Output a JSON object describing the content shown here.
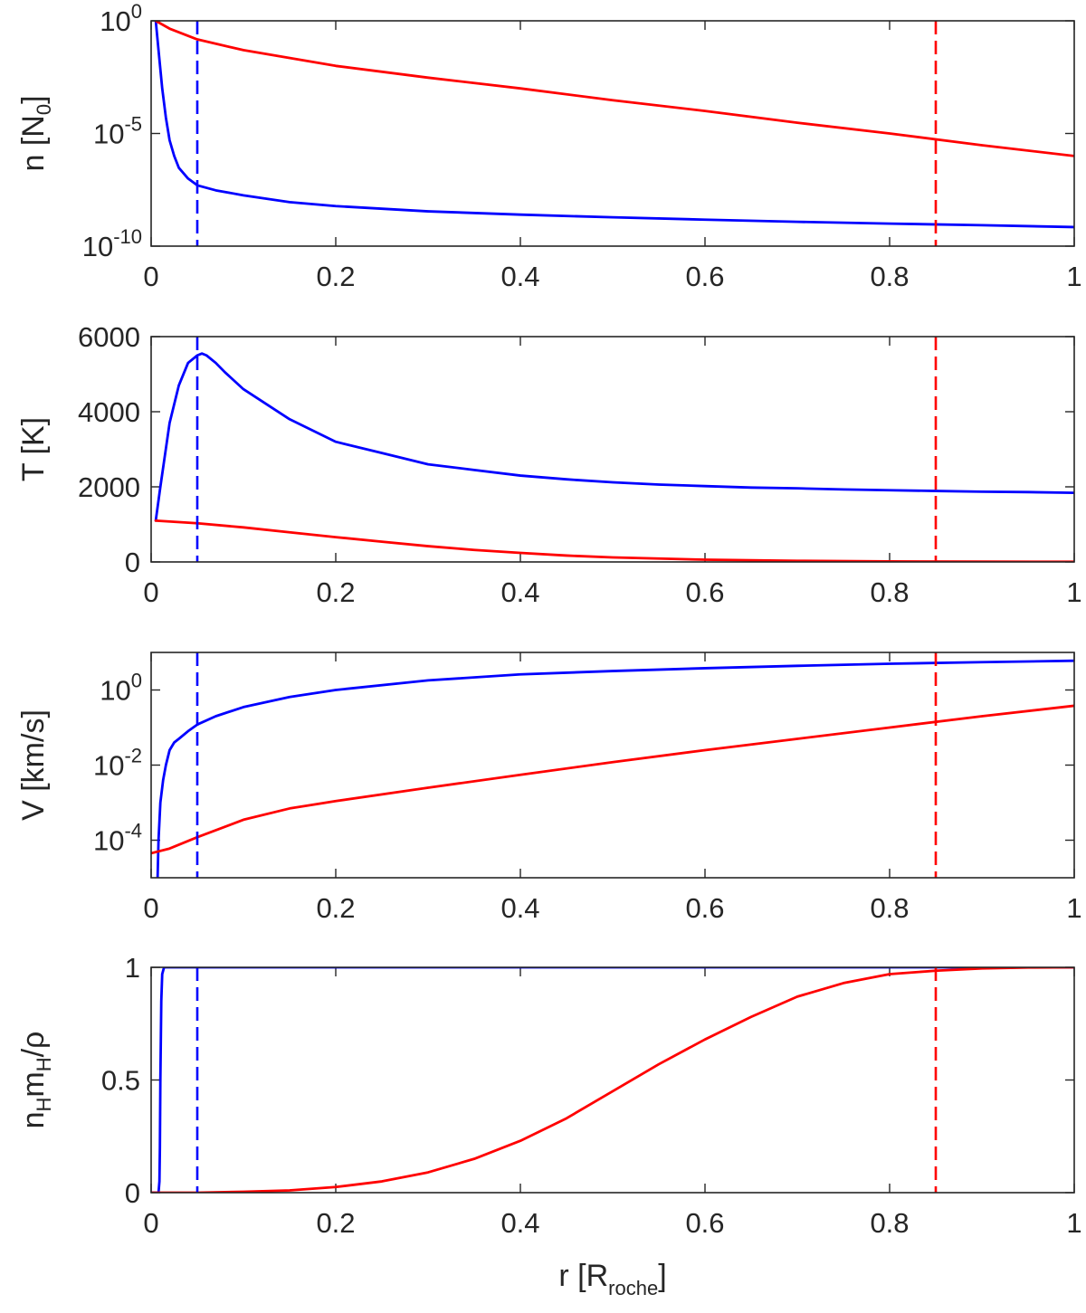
{
  "figure": {
    "xlabel": {
      "main": "r [R",
      "sub": "roche",
      "close": "]"
    }
  },
  "colors": {
    "blue": "#0000ff",
    "red": "#ff0000",
    "axis": "#262626"
  },
  "chart_data": [
    {
      "type": "line",
      "id": "density",
      "ylabel": {
        "parts": [
          {
            "t": "n [N"
          },
          {
            "t": "0",
            "s": "sub"
          },
          {
            "t": "]"
          }
        ]
      },
      "yscale": "log",
      "xlim": [
        0,
        1
      ],
      "ylim": [
        1e-10,
        1
      ],
      "xticks": [
        0,
        0.2,
        0.4,
        0.6,
        0.8,
        1
      ],
      "xtick_labels": [
        "0",
        "0.2",
        "0.4",
        "0.6",
        "0.8",
        "1"
      ],
      "yticks": [
        1e-10,
        1e-05,
        1
      ],
      "ytick_labels": [
        {
          "base": "10",
          "exp": "-10"
        },
        {
          "base": "10",
          "exp": "-5"
        },
        {
          "base": "10",
          "exp": "0"
        }
      ],
      "vlines": [
        {
          "x": 0.05,
          "color": "blue"
        },
        {
          "x": 0.85,
          "color": "red"
        }
      ],
      "series": [
        {
          "name": "blue",
          "color": "blue",
          "x": [
            0.005,
            0.008,
            0.012,
            0.016,
            0.02,
            0.025,
            0.03,
            0.04,
            0.05,
            0.07,
            0.1,
            0.15,
            0.2,
            0.3,
            0.4,
            0.5,
            0.6,
            0.7,
            0.8,
            0.9,
            1.0
          ],
          "y": [
            1,
            0.05,
            0.001,
            5e-05,
            5e-06,
            1e-06,
            3e-07,
            1e-07,
            5e-08,
            3e-08,
            1.8e-08,
            9e-09,
            6e-09,
            3.5e-09,
            2.5e-09,
            1.9e-09,
            1.5e-09,
            1.2e-09,
            1e-09,
            8.5e-10,
            7e-10
          ]
        },
        {
          "name": "red",
          "color": "red",
          "x": [
            0.005,
            0.02,
            0.05,
            0.1,
            0.2,
            0.3,
            0.4,
            0.5,
            0.6,
            0.7,
            0.8,
            0.9,
            1.0
          ],
          "y": [
            1,
            0.45,
            0.15,
            0.05,
            0.01,
            0.003,
            0.001,
            0.0003,
            0.0001,
            3e-05,
            1e-05,
            3e-06,
            1e-06
          ]
        }
      ]
    },
    {
      "type": "line",
      "id": "temperature",
      "ylabel": {
        "parts": [
          {
            "t": "T [K]"
          }
        ]
      },
      "yscale": "linear",
      "xlim": [
        0,
        1
      ],
      "ylim": [
        0,
        6000
      ],
      "xticks": [
        0,
        0.2,
        0.4,
        0.6,
        0.8,
        1
      ],
      "xtick_labels": [
        "0",
        "0.2",
        "0.4",
        "0.6",
        "0.8",
        "1"
      ],
      "yticks": [
        0,
        2000,
        4000,
        6000
      ],
      "ytick_labels": [
        "0",
        "2000",
        "4000",
        "6000"
      ],
      "vlines": [
        {
          "x": 0.05,
          "color": "blue"
        },
        {
          "x": 0.85,
          "color": "red"
        }
      ],
      "series": [
        {
          "name": "blue",
          "color": "blue",
          "x": [
            0.005,
            0.01,
            0.02,
            0.03,
            0.04,
            0.05,
            0.055,
            0.06,
            0.07,
            0.08,
            0.1,
            0.15,
            0.2,
            0.25,
            0.3,
            0.35,
            0.4,
            0.45,
            0.5,
            0.55,
            0.6,
            0.65,
            0.7,
            0.75,
            0.8,
            0.85,
            0.9,
            0.95,
            1.0
          ],
          "y": [
            1100,
            2000,
            3700,
            4700,
            5300,
            5500,
            5550,
            5500,
            5300,
            5050,
            4600,
            3800,
            3200,
            2900,
            2600,
            2450,
            2300,
            2200,
            2120,
            2060,
            2020,
            1980,
            1960,
            1930,
            1910,
            1890,
            1870,
            1860,
            1840
          ]
        },
        {
          "name": "red",
          "color": "red",
          "x": [
            0.005,
            0.05,
            0.1,
            0.15,
            0.2,
            0.25,
            0.3,
            0.35,
            0.4,
            0.45,
            0.5,
            0.6,
            0.7,
            0.8,
            0.9,
            1.0
          ],
          "y": [
            1100,
            1030,
            920,
            790,
            660,
            540,
            420,
            320,
            240,
            170,
            120,
            60,
            30,
            15,
            8,
            5
          ]
        }
      ]
    },
    {
      "type": "line",
      "id": "velocity",
      "ylabel": {
        "parts": [
          {
            "t": "V [km/s]"
          }
        ]
      },
      "yscale": "log",
      "xlim": [
        0,
        1
      ],
      "ylim": [
        1e-05,
        10
      ],
      "xticks": [
        0,
        0.2,
        0.4,
        0.6,
        0.8,
        1
      ],
      "xtick_labels": [
        "0",
        "0.2",
        "0.4",
        "0.6",
        "0.8",
        "1"
      ],
      "yticks": [
        0.0001,
        0.01,
        1
      ],
      "ytick_labels": [
        {
          "base": "10",
          "exp": "-4"
        },
        {
          "base": "10",
          "exp": "-2"
        },
        {
          "base": "10",
          "exp": "0"
        }
      ],
      "vlines": [
        {
          "x": 0.05,
          "color": "blue"
        },
        {
          "x": 0.85,
          "color": "red"
        }
      ],
      "series": [
        {
          "name": "blue",
          "color": "blue",
          "x": [
            0.007,
            0.008,
            0.01,
            0.013,
            0.016,
            0.02,
            0.025,
            0.03,
            0.04,
            0.05,
            0.07,
            0.1,
            0.15,
            0.2,
            0.3,
            0.4,
            0.5,
            0.6,
            0.7,
            0.8,
            0.9,
            1.0
          ],
          "y": [
            1e-05,
            0.0001,
            0.001,
            0.004,
            0.01,
            0.025,
            0.04,
            0.05,
            0.08,
            0.12,
            0.2,
            0.35,
            0.65,
            1.0,
            1.8,
            2.6,
            3.2,
            3.8,
            4.4,
            5.0,
            5.5,
            6.0
          ]
        },
        {
          "name": "red",
          "color": "red",
          "x": [
            0.0,
            0.02,
            0.05,
            0.1,
            0.15,
            0.2,
            0.3,
            0.4,
            0.5,
            0.6,
            0.7,
            0.8,
            0.9,
            1.0
          ],
          "y": [
            4.5e-05,
            6e-05,
            0.00012,
            0.00035,
            0.0007,
            0.0011,
            0.0025,
            0.0055,
            0.012,
            0.025,
            0.05,
            0.1,
            0.2,
            0.38
          ]
        }
      ]
    },
    {
      "type": "line",
      "id": "hydrogen_fraction",
      "ylabel": {
        "parts": [
          {
            "t": "n"
          },
          {
            "t": "H",
            "s": "sub"
          },
          {
            "t": "m"
          },
          {
            "t": "H",
            "s": "sub"
          },
          {
            "t": "/ρ"
          }
        ]
      },
      "yscale": "linear",
      "xlim": [
        0,
        1
      ],
      "ylim": [
        0,
        1
      ],
      "xticks": [
        0,
        0.2,
        0.4,
        0.6,
        0.8,
        1
      ],
      "xtick_labels": [
        "0",
        "0.2",
        "0.4",
        "0.6",
        "0.8",
        "1"
      ],
      "yticks": [
        0,
        0.5,
        1
      ],
      "ytick_labels": [
        "0",
        "0.5",
        "1"
      ],
      "vlines": [
        {
          "x": 0.05,
          "color": "blue"
        },
        {
          "x": 0.85,
          "color": "red"
        }
      ],
      "series": [
        {
          "name": "blue",
          "color": "blue",
          "x": [
            0.0,
            0.008,
            0.009,
            0.0095,
            0.01,
            0.011,
            0.012,
            0.014,
            0.02,
            1.0
          ],
          "y": [
            0.0,
            0.0,
            0.05,
            0.2,
            0.5,
            0.85,
            0.97,
            1.0,
            1.0,
            1.0
          ]
        },
        {
          "name": "red",
          "color": "red",
          "x": [
            0.0,
            0.05,
            0.1,
            0.15,
            0.2,
            0.25,
            0.3,
            0.35,
            0.4,
            0.45,
            0.5,
            0.55,
            0.6,
            0.65,
            0.7,
            0.75,
            0.8,
            0.85,
            0.9,
            0.95,
            1.0
          ],
          "y": [
            0.0,
            0.0,
            0.004,
            0.01,
            0.025,
            0.05,
            0.09,
            0.15,
            0.23,
            0.33,
            0.45,
            0.57,
            0.68,
            0.78,
            0.87,
            0.93,
            0.97,
            0.985,
            0.995,
            0.999,
            1.0
          ]
        }
      ]
    }
  ]
}
